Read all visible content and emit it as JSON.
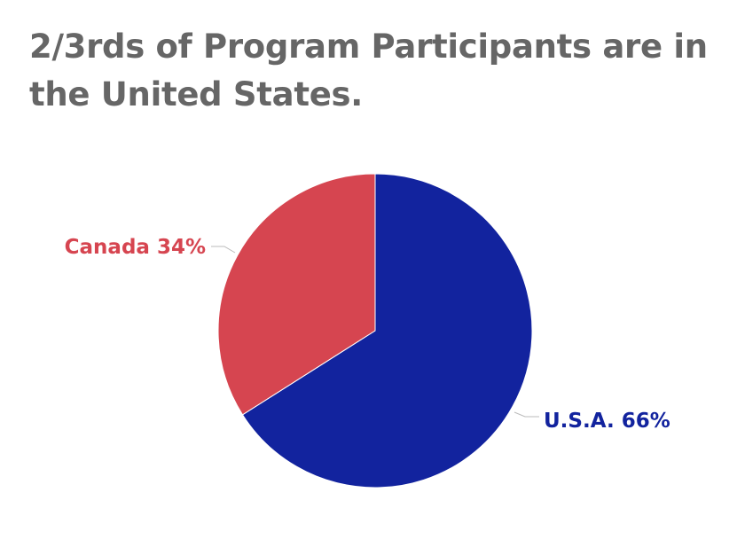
{
  "title": "2/3rds of Program Participants are in the United States.",
  "chart_data": {
    "type": "pie",
    "title": "2/3rds of Program Participants are in the United States.",
    "slices": [
      {
        "label": "U.S.A.",
        "value": 66,
        "display": "U.S.A. 66%",
        "color": "#12239e"
      },
      {
        "label": "Canada",
        "value": 34,
        "display": "Canada 34%",
        "color": "#d64550"
      }
    ],
    "start_angle_deg": 0,
    "direction": "clockwise",
    "leader_line_color": "#bbbbbb"
  }
}
